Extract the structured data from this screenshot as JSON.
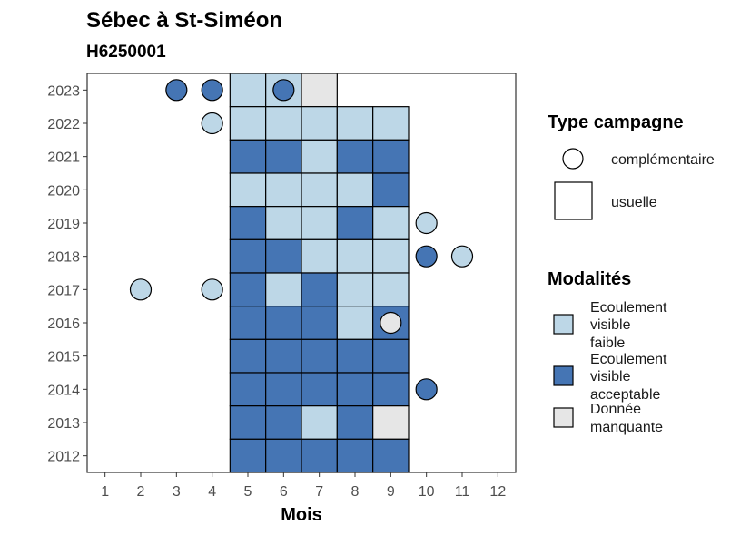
{
  "chart_data": {
    "type": "heatmap",
    "title": "Sébec à St-Siméon",
    "subtitle": "H6250001",
    "xlabel": "Mois",
    "ylabel": "",
    "x_ticks": [
      1,
      2,
      3,
      4,
      5,
      6,
      7,
      8,
      9,
      10,
      11,
      12
    ],
    "y_ticks": [
      2012,
      2013,
      2014,
      2015,
      2016,
      2017,
      2018,
      2019,
      2020,
      2021,
      2022,
      2023
    ],
    "xlim": [
      0.5,
      12.5
    ],
    "ylim": [
      2011.5,
      2023.5
    ],
    "grid": false,
    "legend_placement": "right",
    "categories": {
      "faible": {
        "label_lines": [
          "Ecoulement",
          "visible",
          "faible"
        ],
        "color": "#bdd7e7"
      },
      "acceptable": {
        "label_lines": [
          "Ecoulement",
          "visible",
          "acceptable"
        ],
        "color": "#4575b4"
      },
      "manquante": {
        "label_lines": [
          "Donnée",
          "manquante"
        ],
        "color": "#e6e6e6"
      }
    },
    "campaign_legend": {
      "title": "Type campagne",
      "complementaire": "complémentaire",
      "usuelle": "usuelle"
    },
    "modalites_title": "Modalités",
    "usuelle": [
      {
        "year": 2023,
        "month": 5,
        "value": "faible"
      },
      {
        "year": 2023,
        "month": 6,
        "value": "faible"
      },
      {
        "year": 2023,
        "month": 7,
        "value": "manquante"
      },
      {
        "year": 2022,
        "month": 5,
        "value": "faible"
      },
      {
        "year": 2022,
        "month": 6,
        "value": "faible"
      },
      {
        "year": 2022,
        "month": 7,
        "value": "faible"
      },
      {
        "year": 2022,
        "month": 8,
        "value": "faible"
      },
      {
        "year": 2022,
        "month": 9,
        "value": "faible"
      },
      {
        "year": 2021,
        "month": 5,
        "value": "acceptable"
      },
      {
        "year": 2021,
        "month": 6,
        "value": "acceptable"
      },
      {
        "year": 2021,
        "month": 7,
        "value": "faible"
      },
      {
        "year": 2021,
        "month": 8,
        "value": "acceptable"
      },
      {
        "year": 2021,
        "month": 9,
        "value": "acceptable"
      },
      {
        "year": 2020,
        "month": 5,
        "value": "faible"
      },
      {
        "year": 2020,
        "month": 6,
        "value": "faible"
      },
      {
        "year": 2020,
        "month": 7,
        "value": "faible"
      },
      {
        "year": 2020,
        "month": 8,
        "value": "faible"
      },
      {
        "year": 2020,
        "month": 9,
        "value": "acceptable"
      },
      {
        "year": 2019,
        "month": 5,
        "value": "acceptable"
      },
      {
        "year": 2019,
        "month": 6,
        "value": "faible"
      },
      {
        "year": 2019,
        "month": 7,
        "value": "faible"
      },
      {
        "year": 2019,
        "month": 8,
        "value": "acceptable"
      },
      {
        "year": 2019,
        "month": 9,
        "value": "faible"
      },
      {
        "year": 2018,
        "month": 5,
        "value": "acceptable"
      },
      {
        "year": 2018,
        "month": 6,
        "value": "acceptable"
      },
      {
        "year": 2018,
        "month": 7,
        "value": "faible"
      },
      {
        "year": 2018,
        "month": 8,
        "value": "faible"
      },
      {
        "year": 2018,
        "month": 9,
        "value": "faible"
      },
      {
        "year": 2017,
        "month": 5,
        "value": "acceptable"
      },
      {
        "year": 2017,
        "month": 6,
        "value": "faible"
      },
      {
        "year": 2017,
        "month": 7,
        "value": "acceptable"
      },
      {
        "year": 2017,
        "month": 8,
        "value": "faible"
      },
      {
        "year": 2017,
        "month": 9,
        "value": "faible"
      },
      {
        "year": 2016,
        "month": 5,
        "value": "acceptable"
      },
      {
        "year": 2016,
        "month": 6,
        "value": "acceptable"
      },
      {
        "year": 2016,
        "month": 7,
        "value": "acceptable"
      },
      {
        "year": 2016,
        "month": 8,
        "value": "faible"
      },
      {
        "year": 2016,
        "month": 9,
        "value": "acceptable"
      },
      {
        "year": 2015,
        "month": 5,
        "value": "acceptable"
      },
      {
        "year": 2015,
        "month": 6,
        "value": "acceptable"
      },
      {
        "year": 2015,
        "month": 7,
        "value": "acceptable"
      },
      {
        "year": 2015,
        "month": 8,
        "value": "acceptable"
      },
      {
        "year": 2015,
        "month": 9,
        "value": "acceptable"
      },
      {
        "year": 2014,
        "month": 5,
        "value": "acceptable"
      },
      {
        "year": 2014,
        "month": 6,
        "value": "acceptable"
      },
      {
        "year": 2014,
        "month": 7,
        "value": "acceptable"
      },
      {
        "year": 2014,
        "month": 8,
        "value": "acceptable"
      },
      {
        "year": 2014,
        "month": 9,
        "value": "acceptable"
      },
      {
        "year": 2013,
        "month": 5,
        "value": "acceptable"
      },
      {
        "year": 2013,
        "month": 6,
        "value": "acceptable"
      },
      {
        "year": 2013,
        "month": 7,
        "value": "faible"
      },
      {
        "year": 2013,
        "month": 8,
        "value": "acceptable"
      },
      {
        "year": 2013,
        "month": 9,
        "value": "manquante"
      },
      {
        "year": 2012,
        "month": 5,
        "value": "acceptable"
      },
      {
        "year": 2012,
        "month": 6,
        "value": "acceptable"
      },
      {
        "year": 2012,
        "month": 7,
        "value": "acceptable"
      },
      {
        "year": 2012,
        "month": 8,
        "value": "acceptable"
      },
      {
        "year": 2012,
        "month": 9,
        "value": "acceptable"
      }
    ],
    "complementaire": [
      {
        "year": 2023,
        "month": 3,
        "value": "acceptable"
      },
      {
        "year": 2023,
        "month": 4,
        "value": "acceptable"
      },
      {
        "year": 2023,
        "month": 6,
        "value": "acceptable"
      },
      {
        "year": 2022,
        "month": 4,
        "value": "faible"
      },
      {
        "year": 2019,
        "month": 10,
        "value": "faible"
      },
      {
        "year": 2018,
        "month": 10,
        "value": "acceptable"
      },
      {
        "year": 2018,
        "month": 11,
        "value": "faible"
      },
      {
        "year": 2017,
        "month": 2,
        "value": "faible"
      },
      {
        "year": 2017,
        "month": 4,
        "value": "faible"
      },
      {
        "year": 2016,
        "month": 9,
        "value": "manquante"
      },
      {
        "year": 2014,
        "month": 10,
        "value": "acceptable"
      }
    ]
  }
}
